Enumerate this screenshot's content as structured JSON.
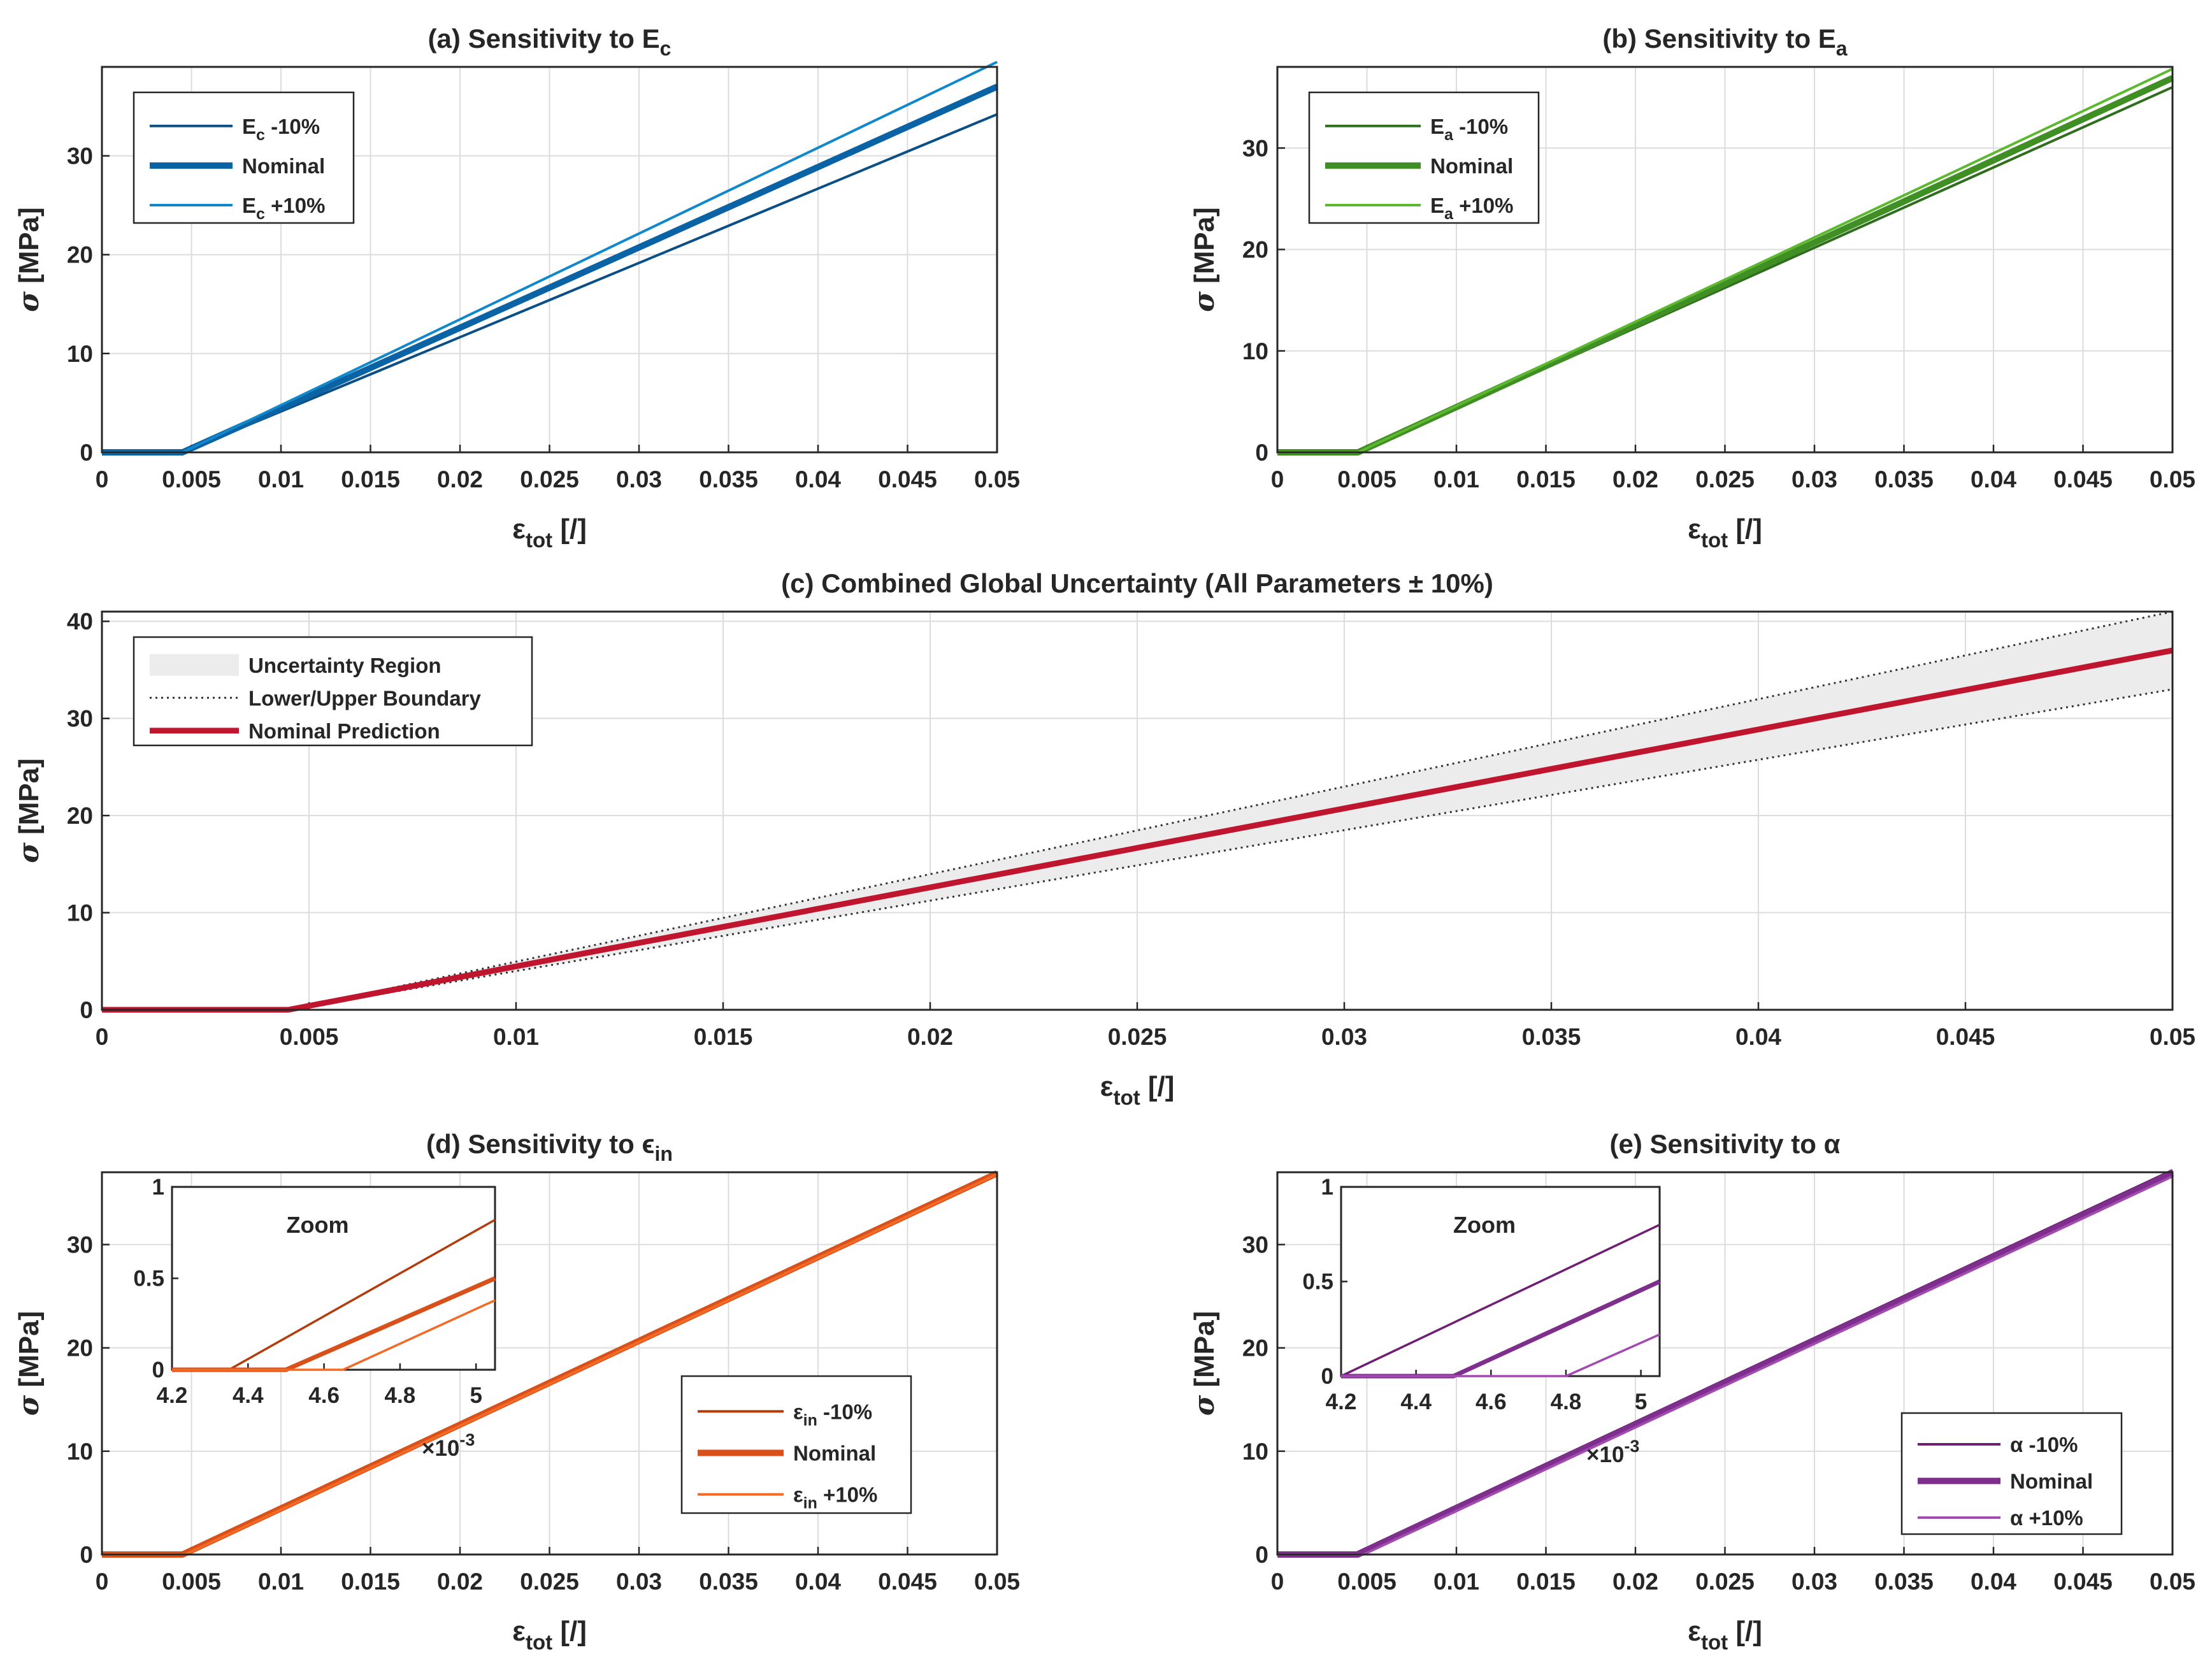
{
  "figure": {
    "x_tick_labels_full": [
      "0",
      "0.005",
      "0.01",
      "0.015",
      "0.02",
      "0.025",
      "0.03",
      "0.035",
      "0.04",
      "0.045",
      "0.05"
    ],
    "x_axis_label": "ε",
    "x_axis_label_sub": "tot",
    "x_axis_label_unit": " [/]",
    "y_axis_label_symbol": "σ",
    "y_axis_label_unit": " [MPa]"
  },
  "panels": {
    "a": {
      "title": "(a) Sensitivity to E",
      "title_sub": "c",
      "y_ticks": [
        "0",
        "10",
        "20",
        "30"
      ],
      "legend": [
        {
          "text": "E",
          "sub": "c",
          "suffix": " -10%"
        },
        {
          "text": "Nominal",
          "sub": "",
          "suffix": ""
        },
        {
          "text": "E",
          "sub": "c",
          "suffix": " +10%"
        }
      ]
    },
    "b": {
      "title": "(b) Sensitivity to E",
      "title_sub": "a",
      "y_ticks": [
        "0",
        "10",
        "20",
        "30"
      ],
      "legend": [
        {
          "text": "E",
          "sub": "a",
          "suffix": " -10%"
        },
        {
          "text": "Nominal",
          "sub": "",
          "suffix": ""
        },
        {
          "text": "E",
          "sub": "a",
          "suffix": " +10%"
        }
      ]
    },
    "c": {
      "title": "(c) Combined Global Uncertainty (All Parameters ± 10%)",
      "y_ticks": [
        "0",
        "10",
        "20",
        "30",
        "40"
      ],
      "legend": [
        {
          "text": "Uncertainty Region"
        },
        {
          "text": "Lower/Upper Boundary"
        },
        {
          "text": "Nominal Prediction"
        }
      ]
    },
    "d": {
      "title": "(d) Sensitivity to ϵ",
      "title_sub": "in",
      "y_ticks": [
        "0",
        "10",
        "20",
        "30"
      ],
      "legend": [
        {
          "text": "ε",
          "sub": "in",
          "suffix": " -10%"
        },
        {
          "text": "Nominal",
          "sub": "",
          "suffix": ""
        },
        {
          "text": "ε",
          "sub": "in",
          "suffix": " +10%"
        }
      ],
      "inset_title": "Zoom",
      "inset_x_ticks": [
        "4.2",
        "4.4",
        "4.6",
        "4.8",
        "5"
      ],
      "inset_y_ticks": [
        "0",
        "0.5",
        "1"
      ],
      "inset_multiplier": "×10",
      "inset_multiplier_exp": "-3"
    },
    "e": {
      "title": "(e) Sensitivity to α",
      "y_ticks": [
        "0",
        "10",
        "20",
        "30"
      ],
      "legend": [
        {
          "text": "α -10%"
        },
        {
          "text": "Nominal"
        },
        {
          "text": "α +10%"
        }
      ],
      "inset_title": "Zoom",
      "inset_x_ticks": [
        "4.2",
        "4.4",
        "4.6",
        "4.8",
        "5"
      ],
      "inset_y_ticks": [
        "0",
        "0.5",
        "1"
      ],
      "inset_multiplier": "×10",
      "inset_multiplier_exp": "-3"
    }
  },
  "chart_data": [
    {
      "id": "a",
      "type": "line",
      "title": "(a) Sensitivity to Ec",
      "xlabel": "εtot [/]",
      "ylabel": "σ [MPa]",
      "xlim": [
        0,
        0.05
      ],
      "ylim": [
        0,
        39
      ],
      "grid": true,
      "legend_position": "top-left",
      "series": [
        {
          "name": "Ec -10%",
          "color": "#0a4f85",
          "x": [
            0,
            0.0045,
            0.05
          ],
          "y": [
            0,
            0,
            34.2
          ]
        },
        {
          "name": "Nominal",
          "color": "#0a63a4",
          "x": [
            0,
            0.0045,
            0.05
          ],
          "y": [
            0,
            0,
            37.0
          ]
        },
        {
          "name": "Ec +10%",
          "color": "#1288cc",
          "x": [
            0,
            0.0045,
            0.05
          ],
          "y": [
            0,
            0,
            39.5
          ]
        }
      ]
    },
    {
      "id": "b",
      "type": "line",
      "title": "(b) Sensitivity to Ea",
      "xlabel": "εtot [/]",
      "ylabel": "σ [MPa]",
      "xlim": [
        0,
        0.05
      ],
      "ylim": [
        0,
        38
      ],
      "grid": true,
      "legend_position": "top-left",
      "series": [
        {
          "name": "Ea -10%",
          "color": "#2e6e1c",
          "x": [
            0,
            0.0045,
            0.05
          ],
          "y": [
            0,
            0,
            36.0
          ]
        },
        {
          "name": "Nominal",
          "color": "#3f8f25",
          "x": [
            0,
            0.0045,
            0.05
          ],
          "y": [
            0,
            0,
            36.9
          ]
        },
        {
          "name": "Ea +10%",
          "color": "#5cb82e",
          "x": [
            0,
            0.0045,
            0.05
          ],
          "y": [
            0,
            0,
            37.8
          ]
        }
      ]
    },
    {
      "id": "c",
      "type": "area",
      "title": "(c) Combined Global Uncertainty (All Parameters ± 10%)",
      "xlabel": "εtot [/]",
      "ylabel": "σ [MPa]",
      "xlim": [
        0,
        0.05
      ],
      "ylim": [
        0,
        41
      ],
      "grid": true,
      "legend_position": "top-left",
      "series": [
        {
          "name": "Lower/Upper Boundary",
          "color": "#333333",
          "x": [
            0,
            0.0045,
            0.05
          ],
          "y": [
            0,
            0,
            33.0
          ]
        },
        {
          "name": "Lower/Upper Boundary",
          "color": "#333333",
          "x": [
            0,
            0.0045,
            0.05
          ],
          "y": [
            0,
            0,
            41.0
          ]
        },
        {
          "name": "Nominal Prediction",
          "color": "#c0152f",
          "x": [
            0,
            0.0045,
            0.05
          ],
          "y": [
            0,
            0,
            37.0
          ]
        }
      ],
      "region": {
        "name": "Uncertainty Region",
        "color": "#ececec"
      }
    },
    {
      "id": "d",
      "type": "line",
      "title": "(d) Sensitivity to ϵin",
      "xlabel": "εtot [/]",
      "ylabel": "σ [MPa]",
      "xlim": [
        0,
        0.05
      ],
      "ylim": [
        0,
        37
      ],
      "grid": true,
      "legend_position": "bottom-right",
      "series": [
        {
          "name": "εin -10%",
          "color": "#b23c0c",
          "x": [
            0,
            0.00435,
            0.05
          ],
          "y": [
            0,
            0,
            37.0
          ]
        },
        {
          "name": "Nominal",
          "color": "#d8511b",
          "x": [
            0,
            0.0045,
            0.05
          ],
          "y": [
            0,
            0,
            36.9
          ]
        },
        {
          "name": "εin +10%",
          "color": "#f46a24",
          "x": [
            0,
            0.00465,
            0.05
          ],
          "y": [
            0,
            0,
            36.8
          ]
        }
      ],
      "inset": {
        "xlim": [
          4.2,
          5.05
        ],
        "ylim": [
          0,
          1
        ],
        "x_multiplier": "×10-3",
        "series": [
          {
            "name": "εin -10%",
            "x": [
              4.2,
              4.35,
              5.05
            ],
            "y": [
              0,
              0,
              0.82
            ]
          },
          {
            "name": "Nominal",
            "x": [
              4.2,
              4.5,
              5.05
            ],
            "y": [
              0,
              0,
              0.5
            ]
          },
          {
            "name": "εin +10%",
            "x": [
              4.2,
              4.65,
              5.05
            ],
            "y": [
              0,
              0,
              0.38
            ]
          }
        ]
      }
    },
    {
      "id": "e",
      "type": "line",
      "title": "(e) Sensitivity to α",
      "xlabel": "εtot [/]",
      "ylabel": "σ [MPa]",
      "xlim": [
        0,
        0.05
      ],
      "ylim": [
        0,
        37
      ],
      "grid": true,
      "legend_position": "bottom-right",
      "series": [
        {
          "name": "α -10%",
          "color": "#6e1f73",
          "x": [
            0,
            0.0042,
            0.05
          ],
          "y": [
            0,
            0,
            37.2
          ]
        },
        {
          "name": "Nominal",
          "color": "#7e2f8e",
          "x": [
            0,
            0.0045,
            0.05
          ],
          "y": [
            0,
            0,
            36.9
          ]
        },
        {
          "name": "α +10%",
          "color": "#a24ab0",
          "x": [
            0,
            0.0048,
            0.05
          ],
          "y": [
            0,
            0,
            36.6
          ]
        }
      ],
      "inset": {
        "xlim": [
          4.2,
          5.05
        ],
        "ylim": [
          0,
          1
        ],
        "x_multiplier": "×10-3",
        "series": [
          {
            "name": "α -10%",
            "x": [
              4.2,
              4.2,
              5.05
            ],
            "y": [
              0,
              0,
              0.8
            ]
          },
          {
            "name": "Nominal",
            "x": [
              4.2,
              4.5,
              5.05
            ],
            "y": [
              0,
              0,
              0.5
            ]
          },
          {
            "name": "α +10%",
            "x": [
              4.2,
              4.8,
              5.05
            ],
            "y": [
              0,
              0,
              0.22
            ]
          }
        ]
      }
    }
  ]
}
